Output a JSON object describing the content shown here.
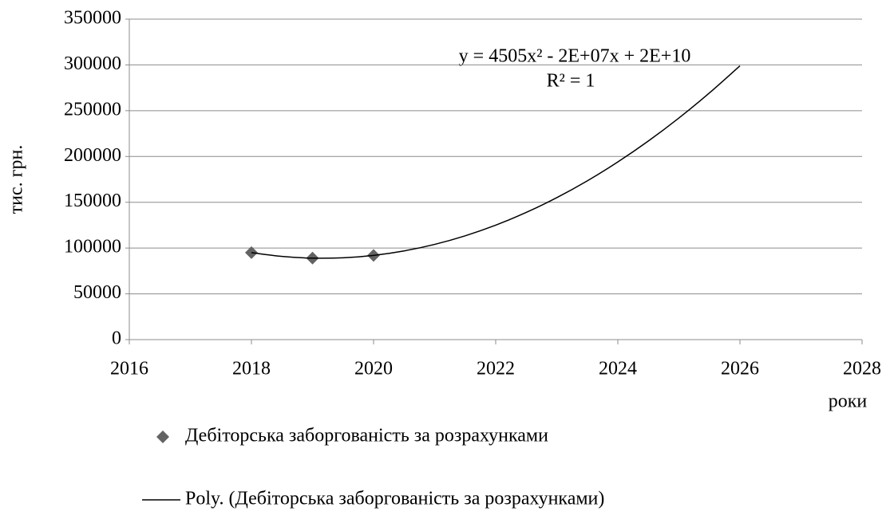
{
  "chart_data": {
    "type": "scatter",
    "xlabel": "роки",
    "ylabel": "тис. грн.",
    "annotations": [
      "y = 4505x² - 2E+07x + 2E+10",
      "R² = 1"
    ],
    "xlim": [
      2016,
      2028
    ],
    "xticks": [
      2016,
      2018,
      2020,
      2022,
      2024,
      2026,
      2028
    ],
    "ylim": [
      0,
      350000
    ],
    "yticks": [
      0,
      50000,
      100000,
      150000,
      200000,
      250000,
      300000,
      350000
    ],
    "grid": true,
    "series": [
      {
        "name": "Дебіторська заборгованість за розрахунками",
        "type": "scatter",
        "color": "#636363",
        "x": [
          2018,
          2019,
          2020
        ],
        "values": [
          95000,
          89000,
          92000
        ]
      },
      {
        "name": "Poly. (Дебіторська заборгованість за розрахунками)",
        "type": "line",
        "color": "#000000",
        "x": [
          2018,
          2018.5,
          2019,
          2019.5,
          2020,
          2020.5,
          2021,
          2021.5,
          2022,
          2022.5,
          2023,
          2023.5,
          2024,
          2024.5,
          2025,
          2025.5,
          2026
        ],
        "values": [
          95000,
          90875,
          89000,
          89375,
          92000,
          96875,
          104000,
          113375,
          125000,
          138875,
          155000,
          173375,
          194000,
          216875,
          242000,
          269375,
          299000
        ]
      }
    ]
  }
}
